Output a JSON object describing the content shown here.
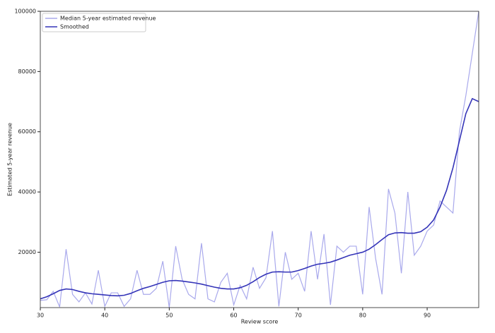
{
  "chart_data": {
    "type": "line",
    "xlabel": "Review score",
    "ylabel": "Estimated 5-year revenue",
    "x": [
      30,
      31,
      32,
      33,
      34,
      35,
      36,
      37,
      38,
      39,
      40,
      41,
      42,
      43,
      44,
      45,
      46,
      47,
      48,
      49,
      50,
      51,
      52,
      53,
      54,
      55,
      56,
      57,
      58,
      59,
      60,
      61,
      62,
      63,
      64,
      65,
      66,
      67,
      68,
      69,
      70,
      71,
      72,
      73,
      74,
      75,
      76,
      77,
      78,
      79,
      80,
      81,
      82,
      83,
      84,
      85,
      86,
      87,
      88,
      89,
      90,
      91,
      92,
      93,
      94,
      95,
      96,
      97,
      98
    ],
    "series": [
      {
        "name": "Median 5-year estimated revenue",
        "color": "#a9a9ec",
        "values": [
          4000,
          4200,
          7000,
          1800,
          21000,
          6000,
          3500,
          6500,
          2800,
          14000,
          2000,
          6500,
          6500,
          2000,
          4500,
          14000,
          6000,
          6000,
          8000,
          17000,
          1600,
          22000,
          11000,
          6000,
          4500,
          23000,
          4500,
          3500,
          10000,
          13000,
          2500,
          9000,
          4500,
          15000,
          8000,
          11500,
          27000,
          2000,
          20000,
          11000,
          13000,
          7000,
          27000,
          11000,
          26000,
          2500,
          22000,
          20000,
          22000,
          22000,
          6000,
          35000,
          18000,
          6000,
          41000,
          33000,
          13000,
          40000,
          19000,
          22000,
          27000,
          29000,
          37000,
          35000,
          33000,
          60000,
          72000,
          86000,
          100000
        ]
      },
      {
        "name": "Smoothed",
        "color": "#3434b8",
        "values": [
          4500,
          5200,
          6200,
          7300,
          7800,
          7600,
          7000,
          6500,
          6200,
          6000,
          5800,
          5600,
          5500,
          5700,
          6300,
          7200,
          8000,
          8600,
          9300,
          10000,
          10500,
          10600,
          10400,
          10100,
          9800,
          9400,
          8900,
          8400,
          8000,
          7800,
          7800,
          8200,
          9000,
          10200,
          11600,
          12700,
          13400,
          13500,
          13400,
          13400,
          13900,
          14600,
          15400,
          16000,
          16300,
          16700,
          17400,
          18200,
          19000,
          19500,
          20000,
          21000,
          22500,
          24200,
          25800,
          26400,
          26500,
          26300,
          26300,
          26800,
          28300,
          30700,
          35000,
          40500,
          48000,
          57000,
          66000,
          71000,
          70000
        ]
      }
    ],
    "xlim": [
      30,
      98
    ],
    "ylim": [
      1600,
      100000
    ],
    "xticks": [
      30,
      40,
      50,
      60,
      70,
      80,
      90
    ],
    "yticks": [
      20000,
      40000,
      60000,
      80000,
      100000
    ],
    "legend": "upper left"
  }
}
